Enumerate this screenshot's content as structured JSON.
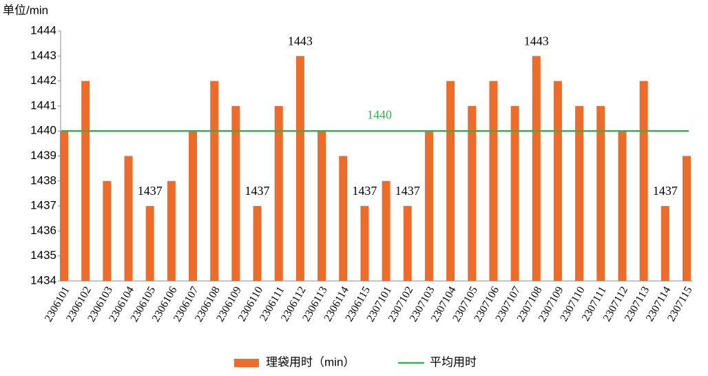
{
  "chart_data": {
    "type": "bar",
    "y_axis_label": "单位/min",
    "categories": [
      "2306101",
      "2306102",
      "2306103",
      "2306104",
      "2306105",
      "2306106",
      "2306107",
      "2306108",
      "2306109",
      "2306110",
      "2306111",
      "2306112",
      "2306113",
      "2306114",
      "2306115",
      "2307101",
      "2307102",
      "2307103",
      "2307104",
      "2307105",
      "2307106",
      "2307107",
      "2307108",
      "2307109",
      "2307110",
      "2307111",
      "2307112",
      "2307113",
      "2307114",
      "2307115"
    ],
    "series": [
      {
        "name": "理袋用时（min）",
        "color": "#ec6d2b",
        "values": [
          1440,
          1442,
          1438,
          1439,
          1437,
          1438,
          1440,
          1442,
          1441,
          1437,
          1441,
          1443,
          1440,
          1439,
          1437,
          1438,
          1437,
          1440,
          1442,
          1441,
          1442,
          1441,
          1443,
          1442,
          1441,
          1441,
          1440,
          1442,
          1437,
          1439
        ],
        "value_labels": [
          null,
          null,
          null,
          null,
          "1437",
          null,
          null,
          null,
          null,
          "1437",
          null,
          "1443",
          null,
          null,
          "1437",
          null,
          "1437",
          null,
          null,
          null,
          null,
          null,
          "1443",
          null,
          null,
          null,
          null,
          null,
          "1437",
          null
        ]
      },
      {
        "name": "平均用时",
        "color": "#2fb34a",
        "type": "line",
        "value": 1440,
        "value_label": "1440"
      }
    ],
    "ylim": [
      1434,
      1444
    ],
    "yticks": [
      1434,
      1435,
      1436,
      1437,
      1438,
      1439,
      1440,
      1441,
      1442,
      1443,
      1444
    ],
    "grid": false,
    "legend": "bottom"
  }
}
